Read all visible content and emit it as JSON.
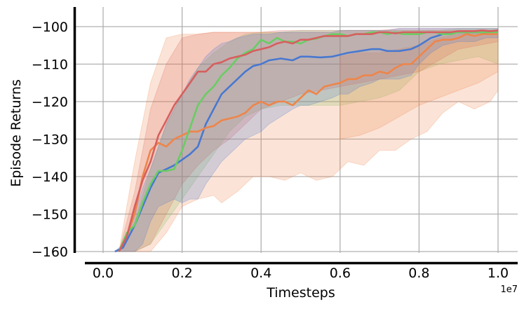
{
  "chart_data": {
    "type": "line",
    "xlabel": "Timesteps",
    "ylabel": "Episode Returns",
    "x_offset_label": "1e7",
    "xlim": [
      -0.05,
      1.05
    ],
    "ylim": [
      -160,
      -94
    ],
    "x_ticks": [
      0.0,
      0.2,
      0.4,
      0.6,
      0.8,
      1.0
    ],
    "x_tick_labels": [
      "0.0",
      "0.2",
      "0.4",
      "0.6",
      "0.8",
      "1.0"
    ],
    "y_ticks": [
      -160,
      -150,
      -140,
      -130,
      -120,
      -110,
      -100
    ],
    "y_tick_labels": [
      "−160",
      "−150",
      "−140",
      "−130",
      "−120",
      "−110",
      "−100"
    ],
    "grid": true,
    "legend": "none",
    "series": [
      {
        "color": "#4878d0",
        "x": [
          0.03,
          0.05,
          0.08,
          0.1,
          0.12,
          0.14,
          0.16,
          0.18,
          0.2,
          0.22,
          0.24,
          0.26,
          0.28,
          0.3,
          0.32,
          0.34,
          0.36,
          0.38,
          0.4,
          0.42,
          0.45,
          0.48,
          0.5,
          0.52,
          0.55,
          0.58,
          0.6,
          0.62,
          0.65,
          0.68,
          0.7,
          0.72,
          0.75,
          0.78,
          0.8,
          0.83,
          0.86,
          0.9,
          0.94,
          0.97,
          1.0
        ],
        "y": [
          -160,
          -159,
          -153,
          -148,
          -143,
          -139,
          -138,
          -137,
          -135.5,
          -134,
          -132,
          -126,
          -122,
          -118,
          -116,
          -114,
          -112,
          -110.5,
          -110,
          -109,
          -108.5,
          -109,
          -108,
          -108,
          -108.2,
          -108,
          -107.5,
          -107,
          -106.5,
          -106,
          -106,
          -106.5,
          -106.5,
          -106,
          -105,
          -103,
          -102,
          -101.5,
          -101.5,
          -101.5,
          -101.3
        ],
        "lower": [
          -160,
          -160,
          -160,
          -158,
          -152,
          -148,
          -147,
          -146,
          -147,
          -146,
          -146,
          -142,
          -139,
          -136,
          -134,
          -132,
          -130,
          -129,
          -128,
          -126,
          -124,
          -122,
          -121,
          -121,
          -120,
          -119,
          -118,
          -118,
          -116,
          -115,
          -114,
          -114,
          -114,
          -113,
          -110,
          -107,
          -105,
          -104,
          -104,
          -103,
          -103
        ],
        "upper": [
          -160,
          -158,
          -150,
          -143,
          -138,
          -132,
          -126,
          -122,
          -118,
          -114,
          -111,
          -108,
          -106,
          -104.5,
          -104,
          -103,
          -102.5,
          -102,
          -102,
          -102,
          -101.5,
          -101.5,
          -101.5,
          -101.5,
          -101.5,
          -101.5,
          -101,
          -101,
          -101,
          -101,
          -101,
          -101,
          -100.5,
          -100.5,
          -100.5,
          -100.5,
          -100.5,
          -100.5,
          -100.5,
          -100.5,
          -100.5
        ]
      },
      {
        "color": "#ee854a",
        "x": [
          0.04,
          0.06,
          0.08,
          0.1,
          0.12,
          0.14,
          0.16,
          0.18,
          0.2,
          0.22,
          0.24,
          0.26,
          0.28,
          0.3,
          0.32,
          0.34,
          0.36,
          0.38,
          0.4,
          0.42,
          0.44,
          0.46,
          0.48,
          0.5,
          0.52,
          0.54,
          0.56,
          0.58,
          0.6,
          0.62,
          0.64,
          0.66,
          0.68,
          0.7,
          0.72,
          0.74,
          0.76,
          0.78,
          0.8,
          0.82,
          0.84,
          0.86,
          0.88,
          0.9,
          0.92,
          0.94,
          0.96,
          0.98,
          1.0
        ],
        "y": [
          -160,
          -156,
          -150,
          -140,
          -133,
          -131,
          -132,
          -130,
          -129,
          -128,
          -128,
          -127,
          -126.5,
          -125,
          -124.5,
          -124,
          -123,
          -121,
          -120,
          -121,
          -120,
          -120,
          -121,
          -119,
          -117,
          -118,
          -116,
          -115.5,
          -115,
          -114,
          -114,
          -113,
          -113,
          -112,
          -112.5,
          -111,
          -110,
          -110,
          -108,
          -106,
          -104,
          -103.5,
          -103.5,
          -103,
          -102,
          -102.5,
          -102,
          -102,
          -102
        ]
      },
      {
        "color": "#6acc64",
        "x": [
          0.04,
          0.06,
          0.08,
          0.1,
          0.12,
          0.14,
          0.16,
          0.18,
          0.2,
          0.22,
          0.24,
          0.26,
          0.28,
          0.3,
          0.32,
          0.34,
          0.36,
          0.38,
          0.4,
          0.42,
          0.44,
          0.46,
          0.48,
          0.5,
          0.52,
          0.54,
          0.56,
          0.58,
          0.6,
          0.62,
          0.64,
          0.66,
          0.68,
          0.7,
          0.72,
          0.74,
          0.76,
          0.78,
          0.8,
          0.82,
          0.84,
          0.86,
          0.88,
          0.9,
          0.92,
          0.94,
          0.96,
          0.98,
          1.0
        ],
        "y": [
          -160,
          -155,
          -153,
          -147,
          -142,
          -138.5,
          -138.5,
          -138,
          -133,
          -127,
          -121,
          -118,
          -116,
          -113,
          -111,
          -108.5,
          -107,
          -106,
          -103.5,
          -104.5,
          -103,
          -104,
          -104,
          -104.5,
          -103.5,
          -103.2,
          -102.5,
          -102,
          -102,
          -102.5,
          -102,
          -102,
          -101.5,
          -101.5,
          -102,
          -101.5,
          -102,
          -102,
          -102,
          -101.5,
          -101.5,
          -102,
          -102,
          -101.5,
          -101.5,
          -101.5,
          -101.5,
          -101.5,
          -101.5
        ]
      },
      {
        "color": "#d65f5f",
        "x": [
          0.04,
          0.06,
          0.08,
          0.1,
          0.12,
          0.14,
          0.16,
          0.18,
          0.2,
          0.22,
          0.24,
          0.26,
          0.28,
          0.3,
          0.32,
          0.34,
          0.36,
          0.38,
          0.4,
          0.42,
          0.44,
          0.46,
          0.48,
          0.5,
          0.52,
          0.54,
          0.56,
          0.58,
          0.6,
          0.62,
          0.64,
          0.66,
          0.68,
          0.7,
          0.72,
          0.74,
          0.76,
          0.78,
          0.8,
          0.82,
          0.84,
          0.86,
          0.88,
          0.9,
          0.92,
          0.94,
          0.96,
          0.98,
          1.0
        ],
        "y": [
          -160,
          -156,
          -148,
          -141,
          -136,
          -129,
          -125,
          -121,
          -118,
          -115,
          -112,
          -112,
          -110,
          -109.5,
          -108.5,
          -108,
          -107.5,
          -106.5,
          -106,
          -105.5,
          -104.5,
          -104,
          -104.5,
          -103.5,
          -103.5,
          -103,
          -102.5,
          -102.5,
          -102.5,
          -102.5,
          -102,
          -102,
          -102,
          -101.5,
          -101.5,
          -101.8,
          -101.5,
          -101.5,
          -101.5,
          -101.5,
          -101.5,
          -101.5,
          -101.5,
          -101.2,
          -101.2,
          -101.2,
          -101,
          -101.2,
          -101
        ]
      }
    ],
    "bands": [
      {
        "color": "#6acc64",
        "x": [
          0.04,
          0.08,
          0.12,
          0.16,
          0.2,
          0.24,
          0.28,
          0.32,
          0.36,
          0.4,
          0.45,
          0.5,
          0.55,
          0.6,
          0.65,
          0.7,
          0.75,
          0.8,
          0.85,
          0.9,
          0.95,
          1.0
        ],
        "lower": [
          -160,
          -160,
          -158,
          -152,
          -146,
          -140,
          -134,
          -128,
          -124,
          -122,
          -121,
          -121,
          -121,
          -121,
          -120,
          -119,
          -117,
          -112,
          -110,
          -109,
          -108,
          -110
        ],
        "upper": [
          -160,
          -152,
          -138,
          -126,
          -118,
          -111,
          -107,
          -104,
          -102,
          -101.5,
          -101.5,
          -101,
          -101,
          -101,
          -101,
          -101,
          -101,
          -101,
          -101,
          -100.5,
          -100.5,
          -100.5
        ]
      },
      {
        "color": "#d65f5f",
        "x": [
          0.04,
          0.08,
          0.12,
          0.16,
          0.2,
          0.24,
          0.28,
          0.32,
          0.36,
          0.4,
          0.45,
          0.5,
          0.55,
          0.6,
          0.65,
          0.7,
          0.75,
          0.8,
          0.85,
          0.9,
          0.95,
          1.0
        ],
        "lower": [
          -160,
          -160,
          -158,
          -150,
          -142,
          -137,
          -133,
          -130,
          -126,
          -122,
          -120,
          -118,
          -117,
          -116,
          -115,
          -114,
          -113,
          -112,
          -109,
          -106,
          -105,
          -104
        ],
        "upper": [
          -160,
          -144,
          -122,
          -110,
          -103,
          -102,
          -101.5,
          -101.5,
          -101.5,
          -101.5,
          -101,
          -101,
          -101,
          -101,
          -101,
          -101,
          -100.5,
          -100.5,
          -100.5,
          -100.5,
          -100.5,
          -100.5
        ]
      },
      {
        "color": "#ee854a",
        "x": [
          0.04,
          0.08,
          0.12,
          0.16,
          0.2,
          0.24,
          0.28,
          0.3,
          0.34,
          0.38,
          0.42,
          0.46,
          0.5,
          0.54,
          0.58,
          0.62,
          0.66,
          0.7,
          0.74,
          0.78,
          0.82,
          0.86,
          0.9,
          0.94,
          0.98,
          1.0
        ],
        "lower": [
          -160,
          -160,
          -160,
          -155,
          -148,
          -146,
          -145,
          -147,
          -144,
          -140,
          -140,
          -141,
          -139,
          -141,
          -140,
          -136,
          -137,
          -133,
          -133,
          -130,
          -128,
          -123,
          -120,
          -122,
          -120,
          -117
        ],
        "upper": [
          -160,
          -136,
          -115,
          -103,
          -102,
          -102,
          -101.5,
          -101.5,
          -101.5,
          -101.5,
          -101.5,
          -101.5,
          -101.5,
          -101.5,
          -101.5,
          -101,
          -101,
          -101,
          -101,
          -101,
          -101,
          -101,
          -101,
          -101,
          -101,
          -101
        ]
      },
      {
        "color": "#ee854a",
        "x": [
          0.6,
          0.65,
          0.7,
          0.75,
          0.8,
          0.85,
          0.9,
          0.95,
          1.0
        ],
        "lower": [
          -130,
          -129,
          -127,
          -124,
          -121,
          -119,
          -117,
          -115,
          -112
        ],
        "upper": [
          -108,
          -107,
          -107,
          -106,
          -105,
          -103,
          -102,
          -101.5,
          -101
        ]
      }
    ]
  }
}
